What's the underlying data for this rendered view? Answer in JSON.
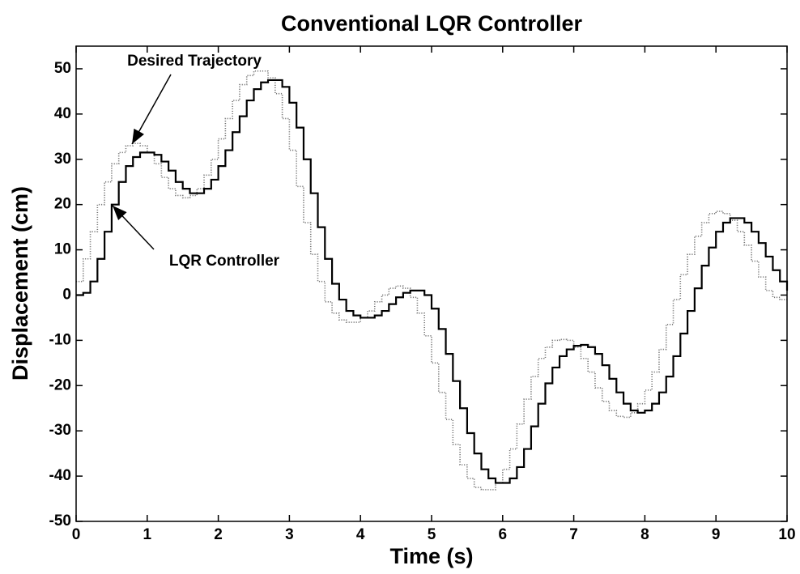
{
  "chart_data": {
    "type": "line",
    "title": "Conventional LQR Controller",
    "x_label": "Time (s)",
    "y_label": "Displacement (cm)",
    "xlim": [
      0,
      10
    ],
    "ylim": [
      -50,
      55
    ],
    "xticks": [
      0,
      1,
      2,
      3,
      4,
      5,
      6,
      7,
      8,
      9,
      10
    ],
    "yticks": [
      -50,
      -40,
      -30,
      -20,
      -10,
      0,
      10,
      20,
      30,
      40,
      50
    ],
    "step": true,
    "x": [
      0,
      0.1,
      0.2,
      0.3,
      0.4,
      0.5,
      0.6,
      0.7,
      0.8,
      0.9,
      1,
      1.1,
      1.2,
      1.3,
      1.4,
      1.5,
      1.6,
      1.7,
      1.8,
      1.9,
      2,
      2.1,
      2.2,
      2.3,
      2.4,
      2.5,
      2.6,
      2.7,
      2.8,
      2.9,
      3,
      3.1,
      3.2,
      3.3,
      3.4,
      3.5,
      3.6,
      3.7,
      3.8,
      3.9,
      4,
      4.1,
      4.2,
      4.3,
      4.4,
      4.5,
      4.6,
      4.7,
      4.8,
      4.9,
      5,
      5.1,
      5.2,
      5.3,
      5.4,
      5.5,
      5.6,
      5.7,
      5.8,
      5.9,
      6,
      6.1,
      6.2,
      6.3,
      6.4,
      6.5,
      6.6,
      6.7,
      6.8,
      6.9,
      7,
      7.1,
      7.2,
      7.3,
      7.4,
      7.5,
      7.6,
      7.7,
      7.8,
      7.9,
      8,
      8.1,
      8.2,
      8.3,
      8.4,
      8.5,
      8.6,
      8.7,
      8.8,
      8.9,
      9,
      9.1,
      9.2,
      9.3,
      9.4,
      9.5,
      9.6,
      9.7,
      9.8,
      9.9,
      10
    ],
    "series": [
      {
        "name": "Desired Trajectory",
        "color": "#777777",
        "dash": "dotted",
        "values": [
          3,
          8,
          14,
          20,
          25,
          29,
          31.5,
          33,
          33.5,
          33,
          31.5,
          29,
          26,
          23.5,
          22,
          21.5,
          22,
          23.5,
          26.5,
          30,
          34.5,
          39,
          43,
          46.5,
          48.5,
          49.5,
          49.5,
          48,
          44.5,
          39,
          32,
          24,
          16,
          9,
          3,
          -1.5,
          -4,
          -5.5,
          -6,
          -6,
          -5,
          -3.5,
          -1.5,
          0,
          1.5,
          2,
          1.5,
          -0.5,
          -4,
          -9,
          -15,
          -21.5,
          -27.5,
          -33,
          -37.5,
          -40.5,
          -42.5,
          -43,
          -43,
          -41.5,
          -38.5,
          -34,
          -28.5,
          -23,
          -18,
          -14,
          -11.5,
          -10,
          -9.8,
          -10,
          -11.5,
          -14,
          -17,
          -20.5,
          -23.5,
          -25.5,
          -26.8,
          -27,
          -26,
          -24,
          -21,
          -17,
          -12,
          -6.5,
          -1,
          4.5,
          9,
          13,
          16,
          18,
          18.5,
          18,
          16.5,
          14,
          11,
          7.5,
          4,
          1,
          -0.5,
          -1,
          -1
        ]
      },
      {
        "name": "LQR Controller",
        "color": "#000000",
        "dash": "solid",
        "values": [
          0,
          0.5,
          3,
          8,
          14,
          20,
          25,
          28.5,
          30.5,
          31.5,
          31.5,
          31,
          29.5,
          27.5,
          25,
          23.5,
          22.5,
          22.5,
          23.5,
          25.5,
          28.5,
          32,
          36,
          39.5,
          43,
          45.5,
          47,
          47.5,
          47.5,
          46,
          42.5,
          37,
          30,
          22.5,
          15,
          8,
          2.5,
          -1,
          -3.5,
          -4.5,
          -5,
          -5,
          -4.5,
          -3.5,
          -2,
          -0.5,
          0.5,
          1,
          1,
          0,
          -3,
          -7.5,
          -13,
          -19,
          -25,
          -30.5,
          -35,
          -38.5,
          -40.5,
          -41.5,
          -41.5,
          -40.5,
          -38,
          -34,
          -29,
          -24,
          -19.5,
          -16,
          -13.5,
          -12,
          -11.2,
          -11,
          -11.5,
          -13,
          -15.5,
          -18.5,
          -21.5,
          -24,
          -25.5,
          -26,
          -25.5,
          -24,
          -21.5,
          -18,
          -13.5,
          -8.5,
          -3.5,
          1.5,
          6.5,
          10.5,
          14,
          16,
          17,
          17,
          16,
          14,
          11.5,
          8.5,
          5.5,
          3,
          1
        ]
      }
    ]
  }
}
